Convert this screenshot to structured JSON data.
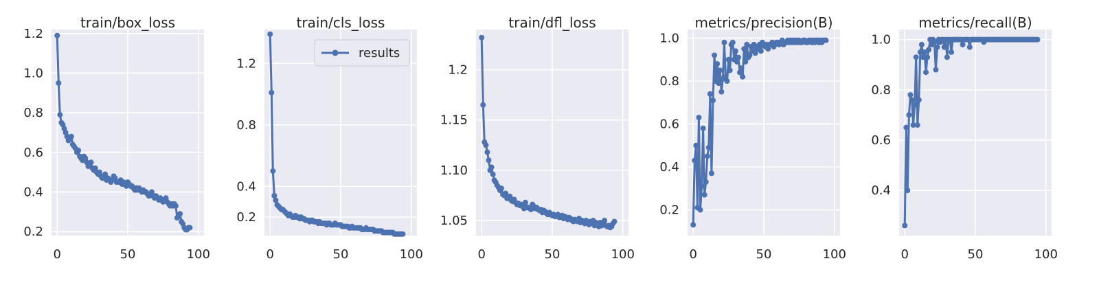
{
  "colors": {
    "plot_bg": "#eaeaf2",
    "grid": "#ffffff",
    "line": "#4c72b0",
    "text": "#262626"
  },
  "chart_data": [
    {
      "type": "line",
      "title": "train/box_loss",
      "xlim": [
        -4,
        104
      ],
      "ylim": [
        0.18,
        1.22
      ],
      "xticks": [
        0,
        50,
        100
      ],
      "xtick_labels": [
        "0",
        "50",
        "100"
      ],
      "yticks": [
        0.2,
        0.4,
        0.6,
        0.8,
        1.0,
        1.2
      ],
      "ytick_labels": [
        "0.2",
        "0.4",
        "0.6",
        "0.8",
        "1.0",
        "1.2"
      ],
      "series": [
        {
          "name": "results",
          "values": [
            1.19,
            0.95,
            0.79,
            0.75,
            0.74,
            0.72,
            0.7,
            0.68,
            0.66,
            0.67,
            0.68,
            0.64,
            0.63,
            0.62,
            0.6,
            0.61,
            0.58,
            0.57,
            0.56,
            0.58,
            0.57,
            0.55,
            0.53,
            0.54,
            0.55,
            0.52,
            0.51,
            0.52,
            0.5,
            0.49,
            0.5,
            0.48,
            0.47,
            0.48,
            0.49,
            0.46,
            0.47,
            0.46,
            0.45,
            0.46,
            0.48,
            0.47,
            0.45,
            0.45,
            0.45,
            0.46,
            0.44,
            0.45,
            0.44,
            0.43,
            0.45,
            0.44,
            0.43,
            0.43,
            0.42,
            0.41,
            0.42,
            0.41,
            0.42,
            0.41,
            0.4,
            0.41,
            0.4,
            0.4,
            0.39,
            0.38,
            0.39,
            0.4,
            0.38,
            0.37,
            0.38,
            0.37,
            0.36,
            0.37,
            0.36,
            0.35,
            0.36,
            0.37,
            0.35,
            0.34,
            0.33,
            0.34,
            0.33,
            0.34,
            0.33,
            0.27,
            0.28,
            0.29,
            0.25,
            0.24,
            0.22,
            0.21,
            0.21,
            0.22,
            0.22
          ]
        }
      ]
    },
    {
      "type": "line",
      "title": "train/cls_loss",
      "xlim": [
        -4,
        104
      ],
      "ylim": [
        0.08,
        1.42
      ],
      "xticks": [
        0,
        50,
        100
      ],
      "xtick_labels": [
        "0",
        "50",
        "100"
      ],
      "yticks": [
        0.2,
        0.4,
        0.8,
        1.2
      ],
      "ytick_labels": [
        "0.2",
        "0.4",
        "0.8",
        "1.2"
      ],
      "legend": {
        "label": "results",
        "position": "upper right"
      },
      "series": [
        {
          "name": "results",
          "values": [
            1.39,
            1.01,
            0.5,
            0.34,
            0.31,
            0.28,
            0.27,
            0.26,
            0.25,
            0.25,
            0.24,
            0.23,
            0.22,
            0.21,
            0.22,
            0.21,
            0.2,
            0.2,
            0.21,
            0.2,
            0.2,
            0.19,
            0.2,
            0.19,
            0.19,
            0.18,
            0.18,
            0.18,
            0.17,
            0.18,
            0.18,
            0.17,
            0.17,
            0.17,
            0.16,
            0.17,
            0.16,
            0.16,
            0.16,
            0.16,
            0.15,
            0.16,
            0.16,
            0.15,
            0.15,
            0.15,
            0.16,
            0.15,
            0.15,
            0.15,
            0.15,
            0.14,
            0.14,
            0.14,
            0.14,
            0.14,
            0.13,
            0.13,
            0.14,
            0.13,
            0.13,
            0.13,
            0.13,
            0.13,
            0.13,
            0.12,
            0.12,
            0.12,
            0.13,
            0.12,
            0.12,
            0.12,
            0.12,
            0.12,
            0.11,
            0.11,
            0.11,
            0.11,
            0.11,
            0.11,
            0.1,
            0.1,
            0.1,
            0.1,
            0.1,
            0.1,
            0.1,
            0.1,
            0.09,
            0.09,
            0.09,
            0.09,
            0.09,
            0.09,
            0.09
          ]
        }
      ]
    },
    {
      "type": "line",
      "title": "train/dfl_loss",
      "xlim": [
        -4,
        104
      ],
      "ylim": [
        1.035,
        1.24
      ],
      "xticks": [
        0,
        50,
        100
      ],
      "xtick_labels": [
        "0",
        "50",
        "100"
      ],
      "yticks": [
        1.05,
        1.1,
        1.15,
        1.2
      ],
      "ytick_labels": [
        "1.05",
        "1.10",
        "1.15",
        "1.2"
      ],
      "series": [
        {
          "name": "results",
          "values": [
            1.232,
            1.165,
            1.128,
            1.125,
            1.118,
            1.11,
            1.1,
            1.103,
            1.096,
            1.09,
            1.088,
            1.085,
            1.083,
            1.08,
            1.082,
            1.076,
            1.075,
            1.077,
            1.072,
            1.073,
            1.074,
            1.07,
            1.069,
            1.071,
            1.068,
            1.066,
            1.067,
            1.065,
            1.066,
            1.064,
            1.062,
            1.068,
            1.063,
            1.063,
            1.062,
            1.061,
            1.066,
            1.064,
            1.062,
            1.063,
            1.061,
            1.06,
            1.061,
            1.058,
            1.06,
            1.059,
            1.057,
            1.056,
            1.058,
            1.056,
            1.055,
            1.056,
            1.054,
            1.055,
            1.056,
            1.053,
            1.054,
            1.055,
            1.052,
            1.054,
            1.053,
            1.051,
            1.053,
            1.052,
            1.05,
            1.049,
            1.051,
            1.05,
            1.049,
            1.052,
            1.048,
            1.05,
            1.049,
            1.047,
            1.05,
            1.048,
            1.046,
            1.049,
            1.047,
            1.05,
            1.045,
            1.048,
            1.046,
            1.044,
            1.048,
            1.045,
            1.046,
            1.05,
            1.045,
            1.044,
            1.045,
            1.043,
            1.044,
            1.047,
            1.049
          ]
        }
      ]
    },
    {
      "type": "line",
      "title": "metrics/precision(B)",
      "xlim": [
        -4,
        104
      ],
      "ylim": [
        0.08,
        1.04
      ],
      "xticks": [
        0,
        50,
        100
      ],
      "xtick_labels": [
        "0",
        "50",
        "100"
      ],
      "yticks": [
        0.2,
        0.4,
        0.6,
        0.8,
        1.0
      ],
      "ytick_labels": [
        "0.2",
        "0.4",
        "0.6",
        "0.8",
        "1.0"
      ],
      "series": [
        {
          "name": "results",
          "values": [
            0.13,
            0.43,
            0.5,
            0.21,
            0.63,
            0.2,
            0.31,
            0.58,
            0.27,
            0.33,
            0.45,
            0.49,
            0.74,
            0.37,
            0.71,
            0.92,
            0.8,
            0.88,
            0.79,
            0.85,
            0.75,
            0.81,
            0.98,
            0.82,
            0.8,
            0.9,
            0.85,
            0.97,
            0.98,
            0.9,
            0.94,
            0.89,
            0.91,
            0.84,
            0.86,
            0.82,
            0.95,
            0.89,
            0.97,
            0.91,
            0.92,
            0.96,
            0.94,
            0.97,
            0.93,
            0.96,
            0.95,
            0.97,
            0.94,
            0.98,
            0.97,
            0.96,
            0.97,
            0.95,
            0.97,
            0.97,
            0.98,
            0.96,
            0.97,
            0.98,
            0.98,
            0.97,
            0.98,
            0.99,
            0.97,
            0.98,
            0.98,
            0.99,
            0.98,
            0.99,
            0.98,
            0.99,
            0.98,
            0.99,
            0.98,
            0.99,
            0.98,
            0.98,
            0.99,
            0.99,
            0.98,
            0.98,
            0.99,
            0.99,
            0.98,
            0.99,
            0.98,
            0.99,
            0.99,
            0.98,
            0.99,
            0.98,
            0.99,
            0.99,
            0.99
          ]
        }
      ]
    },
    {
      "type": "line",
      "title": "metrics/recall(B)",
      "xlim": [
        -4,
        104
      ],
      "ylim": [
        0.22,
        1.04
      ],
      "xticks": [
        0,
        50,
        100
      ],
      "xtick_labels": [
        "0",
        "50",
        "100"
      ],
      "yticks": [
        0.4,
        0.6,
        0.8,
        1.0
      ],
      "ytick_labels": [
        "0.4",
        "0.6",
        "0.8",
        "1.0"
      ],
      "series": [
        {
          "name": "results",
          "values": [
            0.26,
            0.65,
            0.4,
            0.7,
            0.78,
            0.76,
            0.66,
            0.74,
            0.93,
            0.66,
            0.76,
            0.95,
            0.98,
            0.93,
            0.95,
            0.87,
            0.93,
            0.96,
            1.0,
            0.98,
            1.0,
            0.99,
            0.88,
            0.97,
            1.0,
            0.99,
            1.0,
            1.0,
            0.97,
            1.0,
            0.93,
            1.0,
            1.0,
            0.95,
            1.0,
            1.0,
            1.0,
            1.0,
            1.0,
            1.0,
            1.0,
            0.98,
            1.0,
            1.0,
            1.0,
            1.0,
            0.97,
            1.0,
            1.0,
            1.0,
            1.0,
            1.0,
            1.0,
            1.0,
            1.0,
            1.0,
            0.99,
            1.0,
            1.0,
            1.0,
            1.0,
            1.0,
            1.0,
            1.0,
            1.0,
            1.0,
            1.0,
            1.0,
            1.0,
            1.0,
            1.0,
            1.0,
            1.0,
            1.0,
            1.0,
            1.0,
            1.0,
            1.0,
            1.0,
            1.0,
            1.0,
            1.0,
            1.0,
            1.0,
            1.0,
            1.0,
            1.0,
            1.0,
            1.0,
            1.0,
            1.0,
            1.0,
            1.0,
            1.0,
            1.0
          ]
        }
      ]
    }
  ]
}
